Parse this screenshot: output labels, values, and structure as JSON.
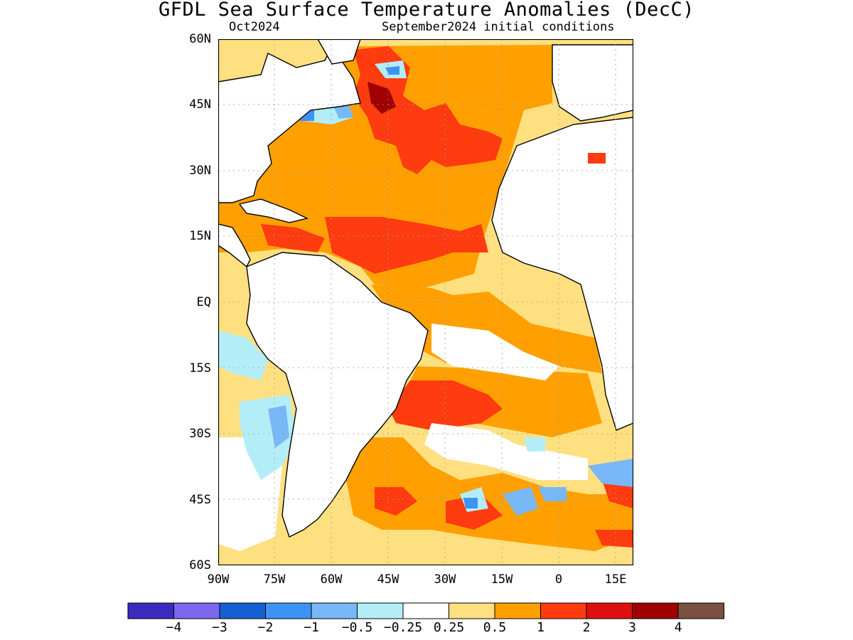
{
  "title": "GFDL Sea Surface Temperature Anomalies (DecC)",
  "subtitle_left": "Oct2024",
  "subtitle_right": "September2024 initial conditions",
  "lat_labels": [
    "60N",
    "45N",
    "30N",
    "15N",
    "EQ",
    "15S",
    "30S",
    "45S",
    "60S"
  ],
  "lon_labels": [
    "90W",
    "75W",
    "60W",
    "45W",
    "30W",
    "15W",
    "0",
    "15E"
  ],
  "colorbar": {
    "colors": [
      "#3b2bbf",
      "#7b68ee",
      "#1560d0",
      "#3d93f5",
      "#78b8f8",
      "#b3eef8",
      "#ffffff",
      "#ffe080",
      "#ffa000",
      "#ff3b10",
      "#e01010",
      "#a00000",
      "#7a5040"
    ],
    "labels": [
      "−4",
      "−3",
      "−2",
      "−1",
      "−0.5",
      "−0.25",
      "0.25",
      "0.5",
      "1",
      "2",
      "3",
      "4"
    ]
  },
  "map_extent": {
    "lon": [
      -90,
      20
    ],
    "lat": [
      -60,
      60
    ]
  }
}
